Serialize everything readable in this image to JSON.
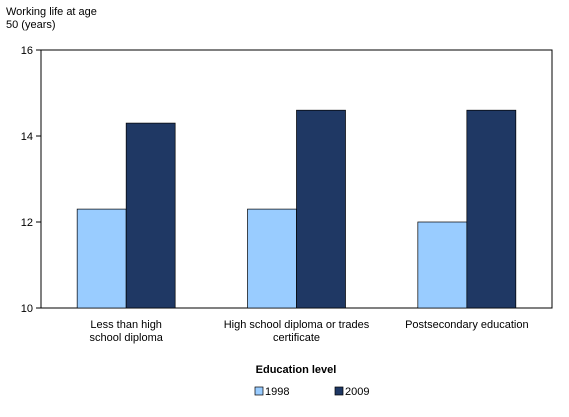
{
  "chart_data": {
    "type": "bar",
    "ylabel_lines": [
      "Working life at age",
      "50 (years)"
    ],
    "xlabel": "Education level",
    "categories": [
      [
        "Less than high",
        "school diploma"
      ],
      [
        "High school diploma or trades",
        "certificate"
      ],
      [
        "Postsecondary education"
      ]
    ],
    "series": [
      {
        "name": "1998",
        "values": [
          12.3,
          12.3,
          12.0
        ]
      },
      {
        "name": "2009",
        "values": [
          14.3,
          14.6,
          14.6
        ]
      }
    ],
    "ylim": [
      10,
      16
    ],
    "yticks": [
      10,
      12,
      14,
      16
    ],
    "grid": false,
    "legend_position": "bottom-center"
  },
  "colors": {
    "series": [
      "#99ccff",
      "#1f3864"
    ],
    "axis": "#000000"
  }
}
